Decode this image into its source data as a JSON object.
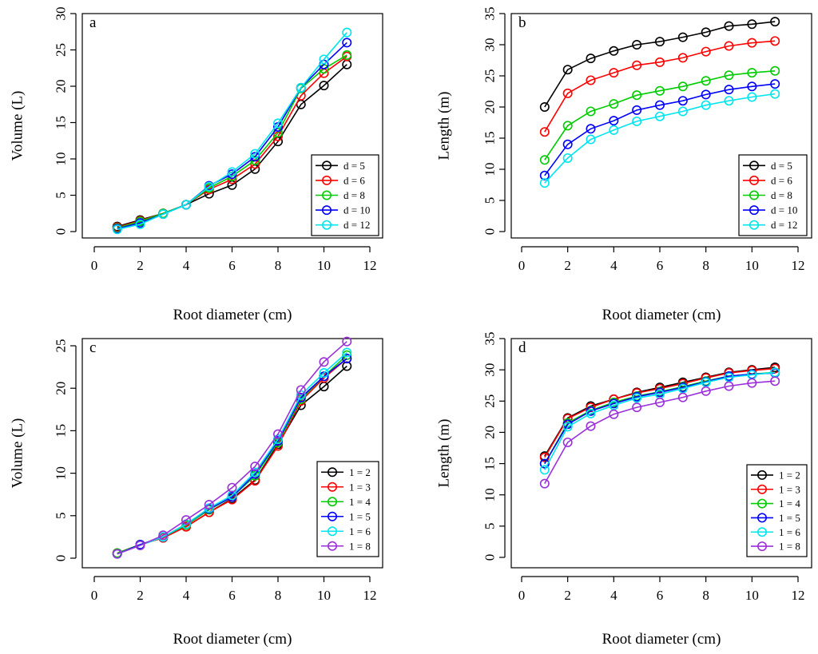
{
  "chart_data": [
    {
      "panel": "a",
      "type": "line",
      "xlabel": "Root diameter (cm)",
      "ylabel": "Volume (L)",
      "xlim": [
        0,
        12
      ],
      "ylim": [
        0,
        30
      ],
      "xticks": [
        0,
        2,
        4,
        6,
        8,
        10,
        12
      ],
      "yticks": [
        0,
        5,
        10,
        15,
        20,
        25,
        30
      ],
      "legend_position": "bottom-right",
      "x": [
        1,
        2,
        3,
        4,
        5,
        6,
        7,
        8,
        9,
        10,
        11
      ],
      "series": [
        {
          "name": "d = 5",
          "color": "#000000",
          "values": [
            0.7,
            1.6,
            2.5,
            3.7,
            5.2,
            6.4,
            8.6,
            12.4,
            17.5,
            20.1,
            23.0
          ]
        },
        {
          "name": "d = 6",
          "color": "#ff0000",
          "values": [
            0.6,
            1.5,
            2.5,
            3.7,
            5.8,
            7.2,
            9.3,
            13.1,
            18.7,
            21.8,
            24.1
          ]
        },
        {
          "name": "d = 8",
          "color": "#00cc00",
          "values": [
            0.5,
            1.4,
            2.5,
            3.7,
            6.0,
            7.6,
            9.8,
            13.6,
            19.7,
            22.4,
            24.3
          ]
        },
        {
          "name": "d = 10",
          "color": "#0000ff",
          "values": [
            0.4,
            1.2,
            2.4,
            3.7,
            6.3,
            7.9,
            10.3,
            14.4,
            19.8,
            23.0,
            26.0
          ]
        },
        {
          "name": "d = 12",
          "color": "#00e5ee",
          "values": [
            0.3,
            1.0,
            2.4,
            3.7,
            6.2,
            8.2,
            10.7,
            14.9,
            19.8,
            23.7,
            27.4
          ]
        }
      ]
    },
    {
      "panel": "b",
      "type": "line",
      "xlabel": "Root diameter (cm)",
      "ylabel": "Length (m)",
      "xlim": [
        0,
        12
      ],
      "ylim": [
        0,
        35
      ],
      "xticks": [
        0,
        2,
        4,
        6,
        8,
        10,
        12
      ],
      "yticks": [
        0,
        5,
        10,
        15,
        20,
        25,
        30,
        35
      ],
      "legend_position": "bottom-right",
      "x": [
        1,
        2,
        3,
        4,
        5,
        6,
        7,
        8,
        9,
        10,
        11
      ],
      "series": [
        {
          "name": "d = 5",
          "color": "#000000",
          "values": [
            20.0,
            26.0,
            27.8,
            29.0,
            30.0,
            30.5,
            31.2,
            32.0,
            33.0,
            33.3,
            33.7
          ]
        },
        {
          "name": "d = 6",
          "color": "#ff0000",
          "values": [
            16.0,
            22.2,
            24.3,
            25.5,
            26.7,
            27.2,
            27.9,
            28.9,
            29.8,
            30.3,
            30.6
          ]
        },
        {
          "name": "d = 8",
          "color": "#00cc00",
          "values": [
            11.5,
            17.0,
            19.3,
            20.5,
            21.9,
            22.6,
            23.3,
            24.2,
            25.1,
            25.5,
            25.8
          ]
        },
        {
          "name": "d = 10",
          "color": "#0000ff",
          "values": [
            9.0,
            14.0,
            16.5,
            17.8,
            19.5,
            20.3,
            21.0,
            22.0,
            22.8,
            23.3,
            23.7
          ]
        },
        {
          "name": "d = 12",
          "color": "#00e5ee",
          "values": [
            7.8,
            11.8,
            14.8,
            16.3,
            17.7,
            18.5,
            19.3,
            20.3,
            21.0,
            21.6,
            22.1
          ]
        }
      ]
    },
    {
      "panel": "c",
      "type": "line",
      "xlabel": "Root diameter (cm)",
      "ylabel": "Volume (L)",
      "xlim": [
        0,
        12
      ],
      "ylim": [
        0,
        25
      ],
      "xticks": [
        0,
        2,
        4,
        6,
        8,
        10,
        12
      ],
      "yticks": [
        0,
        5,
        10,
        15,
        20,
        25
      ],
      "legend_position": "bottom-right",
      "x": [
        1,
        2,
        3,
        4,
        5,
        6,
        7,
        8,
        9,
        10,
        11
      ],
      "series": [
        {
          "name": "1 = 2",
          "color": "#000000",
          "values": [
            0.6,
            1.6,
            2.4,
            3.7,
            5.4,
            7.0,
            9.2,
            13.4,
            18.0,
            20.2,
            22.6
          ]
        },
        {
          "name": "1 = 3",
          "color": "#ff0000",
          "values": [
            0.6,
            1.6,
            2.4,
            3.7,
            5.4,
            6.9,
            9.1,
            13.2,
            18.5,
            21.2,
            23.5
          ]
        },
        {
          "name": "1 = 4",
          "color": "#00cc00",
          "values": [
            0.6,
            1.6,
            2.5,
            3.9,
            5.7,
            7.2,
            9.7,
            13.6,
            18.7,
            21.4,
            23.9
          ]
        },
        {
          "name": "1 = 5",
          "color": "#0000ff",
          "values": [
            0.5,
            1.6,
            2.5,
            4.0,
            5.8,
            7.2,
            9.9,
            13.8,
            18.9,
            21.4,
            23.5
          ]
        },
        {
          "name": "1 = 6",
          "color": "#00e5ee",
          "values": [
            0.5,
            1.5,
            2.5,
            4.0,
            5.9,
            7.4,
            10.1,
            14.0,
            19.2,
            21.8,
            24.2
          ]
        },
        {
          "name": "1 = 8",
          "color": "#9b30d9",
          "values": [
            0.5,
            1.5,
            2.7,
            4.5,
            6.3,
            8.3,
            10.8,
            14.6,
            19.8,
            23.1,
            25.5
          ]
        }
      ]
    },
    {
      "panel": "d",
      "type": "line",
      "xlabel": "Root diameter (cm)",
      "ylabel": "Length (m)",
      "xlim": [
        0,
        12
      ],
      "ylim": [
        0,
        35
      ],
      "xticks": [
        0,
        2,
        4,
        6,
        8,
        10,
        12
      ],
      "yticks": [
        0,
        5,
        10,
        15,
        20,
        25,
        30,
        35
      ],
      "legend_position": "bottom-right",
      "x": [
        1,
        2,
        3,
        4,
        5,
        6,
        7,
        8,
        9,
        10,
        11
      ],
      "series": [
        {
          "name": "1 = 2",
          "color": "#000000",
          "values": [
            16.2,
            22.3,
            24.2,
            25.3,
            26.4,
            27.2,
            28.0,
            28.8,
            29.6,
            30.0,
            30.4
          ]
        },
        {
          "name": "1 = 3",
          "color": "#ff0000",
          "values": [
            16.0,
            22.2,
            24.0,
            25.3,
            26.3,
            27.0,
            27.8,
            28.7,
            29.5,
            29.9,
            30.2
          ]
        },
        {
          "name": "1 = 4",
          "color": "#00cc00",
          "values": [
            15.0,
            21.5,
            23.5,
            24.8,
            25.8,
            26.5,
            27.3,
            28.2,
            29.0,
            29.3,
            29.6
          ]
        },
        {
          "name": "1 = 5",
          "color": "#0000ff",
          "values": [
            15.0,
            21.3,
            23.4,
            24.6,
            25.7,
            26.4,
            27.2,
            28.1,
            29.0,
            29.3,
            29.5
          ]
        },
        {
          "name": "1 = 6",
          "color": "#00e5ee",
          "values": [
            14.0,
            20.9,
            23.0,
            24.3,
            25.5,
            26.1,
            27.0,
            28.0,
            28.8,
            29.2,
            29.6
          ]
        },
        {
          "name": "1 = 8",
          "color": "#9b30d9",
          "values": [
            11.8,
            18.4,
            21.0,
            22.9,
            24.0,
            24.8,
            25.6,
            26.6,
            27.4,
            27.9,
            28.2
          ]
        }
      ]
    }
  ]
}
